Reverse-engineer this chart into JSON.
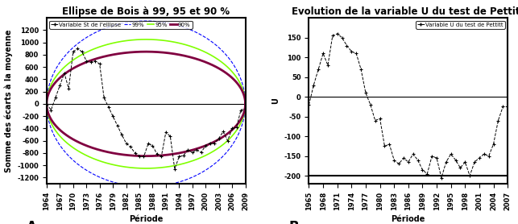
{
  "left_title": "Ellipse de Bois à 99, 95 et 90 %",
  "right_title": "Evolution de la variable U du test de Pettitt",
  "left_xlabel": "Période",
  "left_ylabel": "Somme des écarts à la moyenne",
  "right_xlabel": "Période",
  "right_ylabel": "U",
  "left_years": [
    1964,
    1965,
    1966,
    1967,
    1968,
    1969,
    1970,
    1971,
    1972,
    1973,
    1974,
    1975,
    1976,
    1977,
    1978,
    1979,
    1980,
    1981,
    1982,
    1983,
    1984,
    1985,
    1986,
    1987,
    1988,
    1989,
    1990,
    1991,
    1992,
    1993,
    1994,
    1995,
    1996,
    1997,
    1998,
    1999,
    2000,
    2001,
    2002,
    2003,
    2004,
    2005,
    2006,
    2007,
    2008,
    2009
  ],
  "left_values": [
    0,
    -100,
    100,
    300,
    500,
    250,
    850,
    900,
    850,
    700,
    680,
    700,
    650,
    100,
    -50,
    -200,
    -350,
    -500,
    -640,
    -700,
    -800,
    -850,
    -860,
    -650,
    -680,
    -820,
    -850,
    -460,
    -530,
    -1060,
    -860,
    -840,
    -750,
    -790,
    -750,
    -790,
    -680,
    -640,
    -640,
    -560,
    -450,
    -600,
    -400,
    -380,
    -100,
    -80
  ],
  "right_years": [
    1965,
    1966,
    1967,
    1968,
    1969,
    1970,
    1971,
    1972,
    1973,
    1974,
    1975,
    1976,
    1977,
    1978,
    1979,
    1980,
    1981,
    1982,
    1983,
    1984,
    1985,
    1986,
    1987,
    1988,
    1989,
    1990,
    1991,
    1992,
    1993,
    1994,
    1995,
    1996,
    1997,
    1998,
    1999,
    2000,
    2001,
    2002,
    2003,
    2004,
    2005,
    2006,
    2007
  ],
  "right_values": [
    -20,
    30,
    70,
    110,
    80,
    155,
    160,
    150,
    130,
    115,
    110,
    70,
    10,
    -20,
    -60,
    -55,
    -125,
    -120,
    -160,
    -170,
    -155,
    -165,
    -145,
    -160,
    -185,
    -195,
    -150,
    -155,
    -205,
    -165,
    -145,
    -160,
    -180,
    -165,
    -200,
    -165,
    -155,
    -145,
    -150,
    -120,
    -60,
    -25,
    -25
  ],
  "ellipse_a99": 1350,
  "ellipse_a95": 1050,
  "ellipse_a90": 850,
  "left_xlim": [
    1964,
    2009
  ],
  "left_ylim": [
    -1300,
    1400
  ],
  "right_xlim": [
    1965,
    2007
  ],
  "right_ylim": [
    -220,
    200
  ],
  "left_xticks": [
    1964,
    1967,
    1970,
    1973,
    1976,
    1979,
    1982,
    1985,
    1988,
    1991,
    1994,
    1997,
    2000,
    2003,
    2006,
    2009
  ],
  "right_xticks": [
    1965,
    1968,
    1971,
    1974,
    1977,
    1980,
    1983,
    1986,
    1989,
    1992,
    1995,
    1998,
    2001,
    2004,
    2007
  ],
  "right_yticks": [
    -200,
    -150,
    -100,
    -50,
    0,
    50,
    100,
    150
  ],
  "left_yticks": [
    -1200,
    -1000,
    -800,
    -600,
    -400,
    -200,
    0,
    200,
    400,
    600,
    800,
    1000,
    1200
  ],
  "color_99": "#0000FF",
  "color_95": "#80FF00",
  "color_90": "#800040",
  "color_data": "#000000",
  "bg_color": "#FFFFFF",
  "title_fontsize": 8.5,
  "label_fontsize": 7,
  "tick_fontsize": 6,
  "legend_label_left": "Variable St de l'ellipse",
  "legend_label_right": "Variable U du test de Pettitt",
  "label_A": "A",
  "label_B": "B"
}
